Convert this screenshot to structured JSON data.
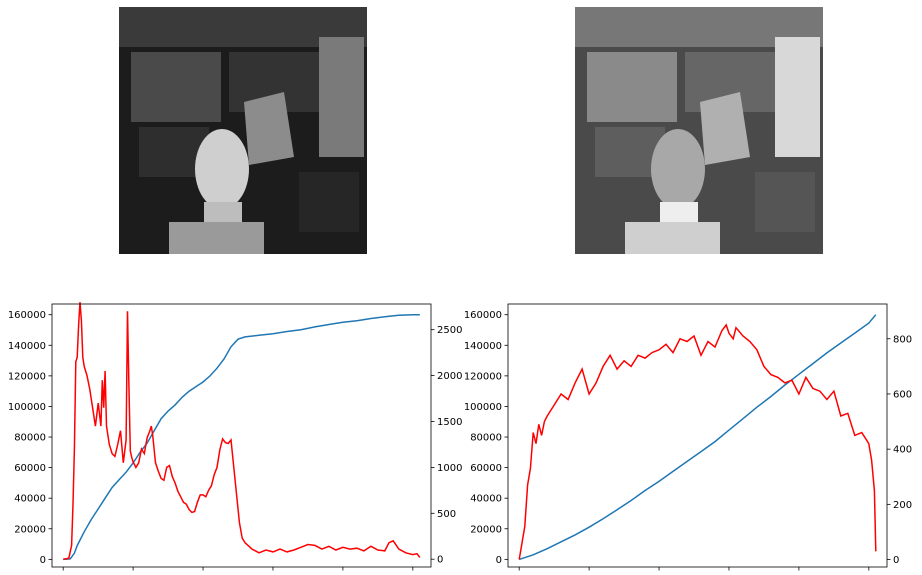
{
  "images": [
    {
      "name": "original-grayscale-image",
      "description_icon": "photo-icon"
    },
    {
      "name": "equalized-grayscale-image",
      "description_icon": "photo-icon"
    }
  ],
  "colors": {
    "cdf": "#1f77b4",
    "histogram": "#ff0000"
  },
  "chart_data": [
    {
      "type": "line",
      "title": "",
      "xlabel": "",
      "ylabel": "",
      "y2label": "",
      "xlim": [
        -8,
        263
      ],
      "ylim": [
        -5000,
        167000
      ],
      "y2lim": [
        -85,
        2780
      ],
      "xticks": [
        0,
        50,
        100,
        150,
        200,
        250
      ],
      "yticks": [
        0,
        20000,
        40000,
        60000,
        80000,
        100000,
        120000,
        140000,
        160000
      ],
      "y2ticks": [
        0,
        500,
        1000,
        1500,
        2000,
        2500
      ],
      "series": [
        {
          "axis": "left",
          "color": "#1f77b4",
          "x": [
            0,
            5,
            8,
            10,
            15,
            20,
            25,
            30,
            35,
            40,
            45,
            50,
            55,
            60,
            65,
            70,
            75,
            80,
            85,
            90,
            95,
            100,
            105,
            110,
            115,
            120,
            125,
            130,
            140,
            150,
            160,
            170,
            180,
            190,
            200,
            210,
            220,
            230,
            240,
            250,
            255
          ],
          "y": [
            0,
            300,
            4000,
            9000,
            18000,
            26000,
            33000,
            40000,
            47000,
            52000,
            57000,
            63000,
            70000,
            76000,
            84000,
            92000,
            97000,
            101000,
            106000,
            110000,
            113000,
            116000,
            120000,
            125000,
            131000,
            139000,
            144000,
            145500,
            146500,
            147600,
            149000,
            150200,
            152000,
            153600,
            155000,
            156100,
            157500,
            158600,
            159600,
            160000,
            160000
          ]
        },
        {
          "axis": "right",
          "color": "#ff0000",
          "x": [
            0,
            4,
            6,
            7,
            8,
            9,
            10,
            11,
            12,
            13,
            14,
            15,
            17,
            19,
            21,
            23,
            25,
            27,
            28,
            29,
            30,
            31,
            33,
            35,
            37,
            39,
            41,
            43,
            45,
            46,
            47,
            48,
            49,
            50,
            52,
            54,
            56,
            58,
            60,
            62,
            63,
            64,
            66,
            68,
            70,
            72,
            74,
            76,
            78,
            80,
            82,
            84,
            86,
            88,
            90,
            92,
            94,
            96,
            98,
            100,
            102,
            104,
            106,
            108,
            110,
            112,
            114,
            116,
            118,
            120,
            122,
            124,
            126,
            128,
            130,
            135,
            140,
            145,
            150,
            155,
            160,
            165,
            170,
            175,
            180,
            185,
            190,
            195,
            200,
            205,
            210,
            215,
            220,
            225,
            230,
            233,
            236,
            240,
            245,
            250,
            253,
            255
          ],
          "y": [
            0,
            10,
            150,
            600,
            1200,
            2150,
            2200,
            2550,
            2800,
            2600,
            2200,
            2100,
            2000,
            1850,
            1650,
            1450,
            1700,
            1450,
            1950,
            1650,
            2050,
            1450,
            1250,
            1150,
            1120,
            1250,
            1400,
            1050,
            1300,
            2700,
            1900,
            1180,
            1110,
            1060,
            1000,
            1050,
            1200,
            1150,
            1320,
            1400,
            1450,
            1350,
            1050,
            960,
            880,
            860,
            1000,
            1020,
            900,
            830,
            740,
            680,
            620,
            600,
            540,
            510,
            520,
            620,
            700,
            700,
            680,
            750,
            800,
            920,
            1000,
            1190,
            1310,
            1270,
            1260,
            1300,
            1000,
            700,
            400,
            230,
            180,
            110,
            70,
            100,
            80,
            110,
            80,
            100,
            130,
            160,
            150,
            110,
            140,
            100,
            130,
            110,
            120,
            90,
            140,
            100,
            90,
            180,
            200,
            110,
            70,
            50,
            60,
            20
          ]
        }
      ]
    },
    {
      "type": "line",
      "title": "",
      "xlabel": "",
      "ylabel": "",
      "y2label": "",
      "xlim": [
        -8,
        263
      ],
      "ylim": [
        -5000,
        167000
      ],
      "y2lim": [
        -27,
        926
      ],
      "xticks": [
        0,
        50,
        100,
        150,
        200,
        250
      ],
      "yticks": [
        0,
        20000,
        40000,
        60000,
        80000,
        100000,
        120000,
        140000,
        160000
      ],
      "y2ticks": [
        0,
        200,
        400,
        600,
        800
      ],
      "series": [
        {
          "axis": "left",
          "color": "#1f77b4",
          "x": [
            0,
            10,
            20,
            30,
            40,
            50,
            60,
            70,
            80,
            90,
            100,
            110,
            120,
            130,
            140,
            150,
            160,
            170,
            180,
            190,
            200,
            210,
            220,
            230,
            240,
            250,
            255
          ],
          "y": [
            0,
            3000,
            7000,
            11500,
            16000,
            21000,
            26500,
            32500,
            38500,
            45000,
            51000,
            57500,
            64000,
            70500,
            77000,
            84500,
            92000,
            99500,
            106500,
            114000,
            121000,
            128000,
            135000,
            141500,
            148000,
            154500,
            160000
          ]
        },
        {
          "axis": "right",
          "color": "#ff0000",
          "x": [
            0,
            2,
            4,
            6,
            8,
            10,
            12,
            14,
            16,
            18,
            20,
            25,
            30,
            35,
            40,
            45,
            50,
            55,
            60,
            65,
            70,
            75,
            80,
            85,
            90,
            95,
            100,
            105,
            110,
            115,
            120,
            125,
            130,
            135,
            140,
            145,
            148,
            150,
            153,
            155,
            160,
            165,
            170,
            175,
            180,
            185,
            190,
            195,
            200,
            205,
            210,
            215,
            220,
            225,
            230,
            235,
            240,
            245,
            250,
            252,
            254,
            255
          ],
          "y": [
            0,
            60,
            120,
            270,
            330,
            460,
            420,
            490,
            450,
            500,
            520,
            560,
            600,
            580,
            640,
            690,
            600,
            640,
            700,
            740,
            690,
            720,
            700,
            740,
            730,
            750,
            760,
            780,
            750,
            800,
            790,
            810,
            740,
            790,
            770,
            830,
            850,
            820,
            800,
            840,
            810,
            790,
            760,
            700,
            670,
            660,
            640,
            650,
            600,
            660,
            620,
            610,
            580,
            610,
            520,
            530,
            450,
            460,
            420,
            360,
            250,
            30
          ]
        }
      ]
    }
  ]
}
